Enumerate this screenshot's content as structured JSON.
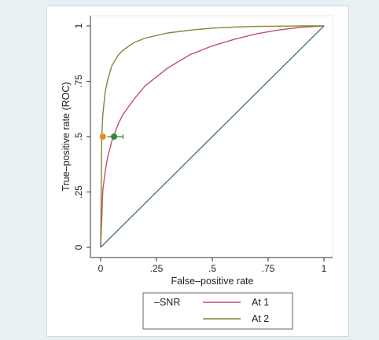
{
  "chart_data": {
    "type": "line",
    "xlabel": "False–positive rate",
    "ylabel": "True–positive rate (ROC)",
    "xlim": [
      0,
      1
    ],
    "ylim": [
      0,
      1
    ],
    "x_ticks": [
      "0",
      ".25",
      ".5",
      ".75",
      "1"
    ],
    "y_ticks": [
      "0",
      ".25",
      ".5",
      ".75",
      "1"
    ],
    "grid": false,
    "legend_position": "bottom",
    "legend": [
      {
        "label": "–SNR",
        "color": "",
        "kind": "text"
      },
      {
        "label": "At 1",
        "color": "#c0506a",
        "kind": "line"
      },
      {
        "label": "At 2",
        "color": "#7a8a35",
        "kind": "line"
      }
    ],
    "series": [
      {
        "name": "At 1",
        "color": "#c0506a",
        "x": [
          0,
          0.01,
          0.02,
          0.03,
          0.05,
          0.08,
          0.1,
          0.15,
          0.2,
          0.25,
          0.3,
          0.4,
          0.5,
          0.6,
          0.7,
          0.8,
          0.9,
          1.0
        ],
        "y": [
          0,
          0.26,
          0.34,
          0.4,
          0.48,
          0.56,
          0.6,
          0.67,
          0.73,
          0.77,
          0.81,
          0.87,
          0.91,
          0.94,
          0.965,
          0.982,
          0.994,
          1.0
        ]
      },
      {
        "name": "At 2",
        "color": "#7a8a35",
        "x": [
          0,
          0.005,
          0.01,
          0.02,
          0.03,
          0.05,
          0.08,
          0.1,
          0.15,
          0.2,
          0.3,
          0.4,
          0.5,
          0.6,
          0.7,
          0.8,
          0.9,
          1.0
        ],
        "y": [
          0,
          0.5,
          0.6,
          0.7,
          0.75,
          0.82,
          0.87,
          0.89,
          0.925,
          0.945,
          0.968,
          0.981,
          0.99,
          0.995,
          0.998,
          0.999,
          1.0,
          1.0
        ]
      },
      {
        "name": "",
        "color": "#4d7a7a",
        "x": [
          0,
          1
        ],
        "y": [
          0,
          1
        ]
      }
    ],
    "points": [
      {
        "x": 0.01,
        "y": 0.5,
        "color": "#f08a18"
      },
      {
        "x": 0.06,
        "y": 0.5,
        "color": "#2e8a3a",
        "error_x": [
          0.03,
          0.1
        ]
      }
    ]
  }
}
